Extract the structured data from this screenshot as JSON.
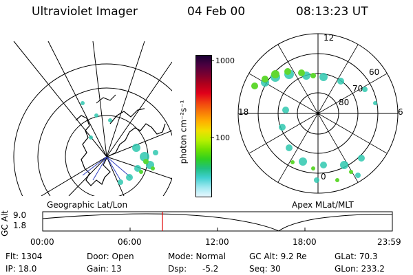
{
  "header": {
    "instrument": "Ultraviolet Imager",
    "date": "04 Feb 00",
    "time": "08:13:23 UT"
  },
  "left_panel": {
    "caption": "Geographic Lat/Lon"
  },
  "right_panel": {
    "caption": "Apex MLat/MLT",
    "mlt_labels": {
      "top": "12",
      "left": "18",
      "right": "6",
      "bottom": "0"
    },
    "lat_labels": [
      "60",
      "70",
      "80"
    ]
  },
  "colorbar": {
    "unit": "photon cm⁻²s⁻¹",
    "ticks": [
      "1000",
      "100"
    ],
    "colors_top_to_bottom": [
      "#1a0033",
      "#4b0040",
      "#7a0030",
      "#b0001c",
      "#e0001a",
      "#f04010",
      "#f87a08",
      "#ffb000",
      "#f0e000",
      "#b8f000",
      "#70e000",
      "#30d020",
      "#20c080",
      "#40d0d0",
      "#a0e8f0",
      "#e8f8ff"
    ]
  },
  "timeline": {
    "ylabel": "GC Alt",
    "yticks": [
      "9.0",
      "1.8"
    ],
    "xticks": [
      "00:00",
      "06:00",
      "12:00",
      "18:00",
      "23:59"
    ],
    "marker_fraction": 0.3425
  },
  "info": {
    "flt": "Flt: 1304",
    "ip": "IP: 18.0",
    "door": "Door: Open",
    "gain": "Gain: 13",
    "mode": "Mode: Normal",
    "dsp": "Dsp:",
    "dsp_val": "-5.2",
    "gcalt": "GC Alt: 9.2 Re",
    "seq": "Seq: 30",
    "glat": "GLat: 70.3",
    "glon": "GLon: 233.2"
  }
}
